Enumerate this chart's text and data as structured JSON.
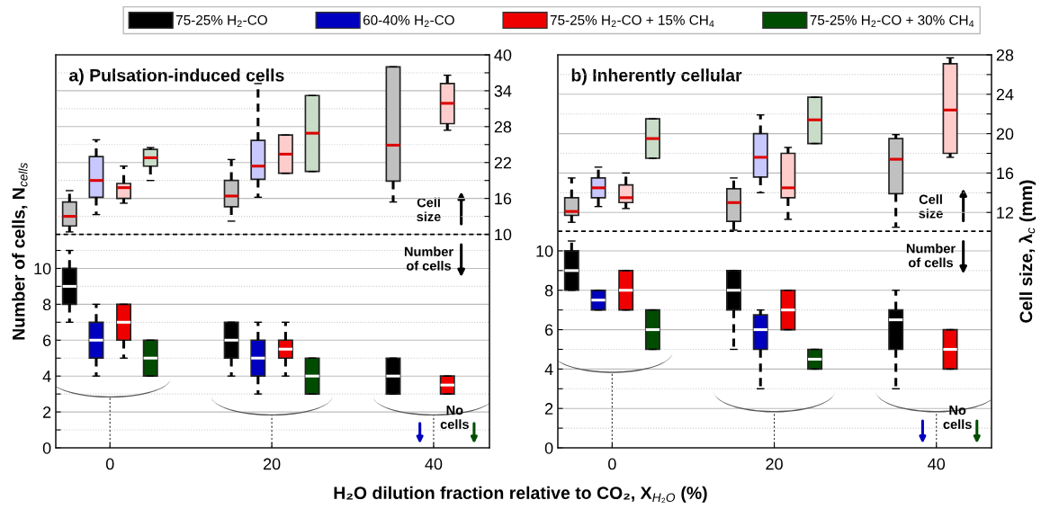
{
  "chart_data": [
    {
      "type": "box",
      "title": "a) Pulsation-induced cells",
      "xlabel": "H₂O dilution fraction relative to CO₂, X$_{H₂O}$ (%)",
      "ylabel": "Number of cells, N$_{cells}$",
      "annotations": [
        "Cell\nsize",
        "Number\nof cells",
        "No\ncells"
      ],
      "xlim": [
        -6.7,
        46.9
      ],
      "xticks": [
        0,
        20,
        40
      ],
      "ylim": [
        0,
        21.9
      ],
      "yticks": [
        0,
        {
          "value": 1,
          "label": null
        },
        2,
        {
          "value": 3,
          "label": null
        },
        4,
        {
          "value": 5,
          "label": null
        },
        6,
        {
          "value": 7,
          "label": null
        },
        8,
        {
          "value": 9,
          "label": null
        },
        10,
        {
          "value": 11,
          "label": null
        }
      ],
      "y2lim": [
        -25.7,
        40
      ],
      "y2ticks": [
        10,
        {
          "value": 13,
          "label": null
        },
        16,
        {
          "value": 19,
          "label": null
        },
        22,
        {
          "value": 25,
          "label": null
        },
        28,
        {
          "value": 31,
          "label": null
        },
        34,
        {
          "value": 37,
          "label": null
        },
        40
      ],
      "grid": true,
      "legend": "top",
      "line_style": "dashed",
      "ref_lines": [
        {
          "axis": "y2",
          "value": 10,
          "color": "#000000",
          "line_style": "dashed"
        },
        {
          "axis": "x",
          "value": 0,
          "color": "#333333",
          "line_style": "dotted"
        },
        {
          "axis": "x",
          "value": 20,
          "color": "#333333",
          "line_style": "dotted"
        },
        {
          "axis": "x",
          "value": 40,
          "color": "#333333",
          "line_style": "dotted"
        }
      ],
      "series": [
        {
          "name": "75-25% H$_{2}$-CO",
          "color": "#000000",
          "axis": "y",
          "x": [
            -5,
            15,
            35
          ],
          "boxes": [
            {
              "low": 7,
              "q1": 8,
              "median": 9,
              "q3": 10,
              "high": 11
            },
            {
              "low": 4,
              "q1": 5,
              "median": 6,
              "q3": 7,
              "high": 7
            },
            {
              "low": 3,
              "q1": 3,
              "median": 4,
              "q3": 5,
              "high": 5
            }
          ]
        },
        {
          "name": "60-40% H$_{2}$-CO",
          "color": "#0000c0",
          "axis": "y",
          "x": [
            -1.7,
            18.3,
            null
          ],
          "boxes": [
            {
              "low": 4,
              "q1": 5,
              "median": 6,
              "q3": 7,
              "high": 8
            },
            {
              "low": 3,
              "q1": 4,
              "median": 5,
              "q3": 6,
              "high": 7
            },
            null
          ]
        },
        {
          "name": "75-25% H$_{2}$-CO + 15% CH$_{4}$",
          "color": "#ee0000",
          "axis": "y",
          "x": [
            1.7,
            21.7,
            41.7
          ],
          "boxes": [
            {
              "low": 5,
              "q1": 6,
              "median": 7,
              "q3": 8,
              "high": 8
            },
            {
              "low": 4,
              "q1": 5,
              "median": 5.5,
              "q3": 6,
              "high": 7
            },
            {
              "low": 3,
              "q1": 3,
              "median": 3.5,
              "q3": 4,
              "high": 4
            }
          ]
        },
        {
          "name": "75-25% H$_{2}$-CO + 30% CH$_{4}$",
          "color": "#004d00",
          "axis": "y",
          "x": [
            5,
            25,
            null
          ],
          "boxes": [
            {
              "low": 4,
              "q1": 4,
              "median": 5,
              "q3": 6,
              "high": 6
            },
            {
              "low": 3,
              "q1": 3,
              "median": 4,
              "q3": 5,
              "high": 5
            },
            null
          ]
        },
        {
          "color": "#c0c0c0",
          "axis": "y2",
          "x": [
            -5,
            15,
            35
          ],
          "boxes": [
            {
              "low": 10.4,
              "q1": 11.4,
              "median": 13,
              "q3": 15.4,
              "high": 17.3
            },
            {
              "low": 12.2,
              "q1": 14.6,
              "median": 16.4,
              "q3": 19,
              "high": 22.5
            },
            {
              "low": 15.4,
              "q1": 18.9,
              "median": 24.9,
              "q3": 38,
              "high": 38
            }
          ]
        },
        {
          "color": "#c8c8ff",
          "axis": "y2",
          "x": [
            -1.7,
            18.3,
            null
          ],
          "boxes": [
            {
              "low": 13.3,
              "q1": 16.2,
              "median": 19,
              "q3": 23,
              "high": 25.8
            },
            {
              "low": 16.2,
              "q1": 19.2,
              "median": 21.4,
              "q3": 25.7,
              "high": 35.2
            },
            null
          ]
        },
        {
          "color": "#ffcccc",
          "axis": "y2",
          "x": [
            1.7,
            21.7,
            41.7
          ],
          "boxes": [
            {
              "low": 15.2,
              "q1": 16,
              "median": 17.8,
              "q3": 18.5,
              "high": 21.4
            },
            {
              "low": 20.2,
              "q1": 20.2,
              "median": 23.4,
              "q3": 26.6,
              "high": 26.6
            },
            {
              "low": 27.4,
              "q1": 28.5,
              "median": 31.9,
              "q3": 35.2,
              "high": 36.6
            }
          ]
        },
        {
          "color": "#c8dcc8",
          "axis": "y2",
          "x": [
            5,
            25,
            null
          ],
          "boxes": [
            {
              "low": 19,
              "q1": 21.4,
              "median": 22.8,
              "q3": 24.2,
              "high": 24.5
            },
            {
              "low": 20.5,
              "q1": 20.5,
              "median": 26.9,
              "q3": 33.2,
              "high": 33.2
            },
            null
          ]
        }
      ]
    },
    {
      "type": "box",
      "title": "b) Inherently cellular",
      "y2label": "Cell size, λ$_{c}$ (mm)",
      "annotations": [
        "Cell\nsize",
        "Number\nof cells",
        "No\ncells"
      ],
      "xlim": [
        -6.7,
        46.8
      ],
      "xticks": [
        0,
        20,
        40
      ],
      "ylim": [
        0,
        19.95
      ],
      "yticks": [
        0,
        {
          "value": 1,
          "label": null
        },
        2,
        {
          "value": 3,
          "label": null
        },
        4,
        {
          "value": 5,
          "label": null
        },
        6,
        {
          "value": 7,
          "label": null
        },
        8,
        {
          "value": 9,
          "label": null
        },
        10
      ],
      "y2lim": [
        -11.9,
        28
      ],
      "y2ticks": [
        12,
        {
          "value": 14,
          "label": null
        },
        16,
        {
          "value": 18,
          "label": null
        },
        20,
        {
          "value": 22,
          "label": null
        },
        24,
        {
          "value": 26,
          "label": null
        },
        28
      ],
      "grid": true,
      "line_style": "dashed",
      "ref_lines": [
        {
          "axis": "y",
          "value": 11,
          "color": "#000000",
          "line_style": "dashed"
        },
        {
          "axis": "x",
          "value": 0,
          "color": "#333333",
          "line_style": "dotted"
        },
        {
          "axis": "x",
          "value": 20,
          "color": "#333333",
          "line_style": "dotted"
        },
        {
          "axis": "x",
          "value": 40,
          "color": "#333333",
          "line_style": "dotted"
        }
      ],
      "series": [
        {
          "color": "#000000",
          "axis": "y",
          "x": [
            -5,
            15,
            35
          ],
          "boxes": [
            {
              "low": 8,
              "q1": 8,
              "median": 9,
              "q3": 10,
              "high": 10.5
            },
            {
              "low": 5,
              "q1": 7,
              "median": 8,
              "q3": 9,
              "high": 9
            },
            {
              "low": 3,
              "q1": 5,
              "median": 6.5,
              "q3": 7,
              "high": 8
            }
          ]
        },
        {
          "color": "#0000c0",
          "axis": "y",
          "x": [
            -1.7,
            18.3,
            null
          ],
          "boxes": [
            {
              "low": 7,
              "q1": 7,
              "median": 7.5,
              "q3": 8,
              "high": 8
            },
            {
              "low": 3,
              "q1": 5,
              "median": 6,
              "q3": 6.75,
              "high": 7
            },
            null
          ]
        },
        {
          "color": "#ee0000",
          "axis": "y",
          "x": [
            1.7,
            21.7,
            41.7
          ],
          "boxes": [
            {
              "low": 7,
              "q1": 7,
              "median": 8,
              "q3": 9,
              "high": 9
            },
            {
              "low": 6,
              "q1": 6,
              "median": 7,
              "q3": 8,
              "high": 8
            },
            {
              "low": 4,
              "q1": 4,
              "median": 5,
              "q3": 6,
              "high": 6
            }
          ]
        },
        {
          "color": "#004d00",
          "axis": "y",
          "x": [
            5,
            25,
            null
          ],
          "boxes": [
            {
              "low": 5,
              "q1": 5,
              "median": 6,
              "q3": 7,
              "high": 7
            },
            {
              "low": 4,
              "q1": 4,
              "median": 4.5,
              "q3": 5,
              "high": 5
            },
            null
          ]
        },
        {
          "color": "#c0c0c0",
          "axis": "y2",
          "x": [
            -5,
            15,
            35
          ],
          "boxes": [
            {
              "low": 11,
              "q1": 11.7,
              "median": 12.1,
              "q3": 13.5,
              "high": 15.5
            },
            {
              "low": 10.2,
              "q1": 11.1,
              "median": 13,
              "q3": 14.4,
              "high": 15.5
            },
            {
              "low": 10.5,
              "q1": 13.9,
              "median": 17.4,
              "q3": 19.5,
              "high": 19.9
            }
          ]
        },
        {
          "color": "#c8c8ff",
          "axis": "y2",
          "x": [
            -1.7,
            18.3,
            null
          ],
          "boxes": [
            {
              "low": 12.6,
              "q1": 13.5,
              "median": 14.5,
              "q3": 15.5,
              "high": 16.6
            },
            {
              "low": 14,
              "q1": 15.6,
              "median": 17.6,
              "q3": 20,
              "high": 21.9
            },
            null
          ]
        },
        {
          "color": "#ffcccc",
          "axis": "y2",
          "x": [
            1.7,
            21.7,
            41.7
          ],
          "boxes": [
            {
              "low": 12.4,
              "q1": 13,
              "median": 13.5,
              "q3": 14.8,
              "high": 16
            },
            {
              "low": 11.3,
              "q1": 13.5,
              "median": 14.5,
              "q3": 18,
              "high": 18.6
            },
            {
              "low": 17.6,
              "q1": 18,
              "median": 22.4,
              "q3": 27.1,
              "high": 27.7
            }
          ]
        },
        {
          "color": "#c8dcc8",
          "axis": "y2",
          "x": [
            5,
            25,
            null
          ],
          "boxes": [
            {
              "low": 17.5,
              "q1": 17.5,
              "median": 19.5,
              "q3": 21.5,
              "high": 21.5
            },
            {
              "low": 19,
              "q1": 19,
              "median": 21.4,
              "q3": 23.7,
              "high": 23.7
            },
            null
          ]
        }
      ]
    }
  ]
}
